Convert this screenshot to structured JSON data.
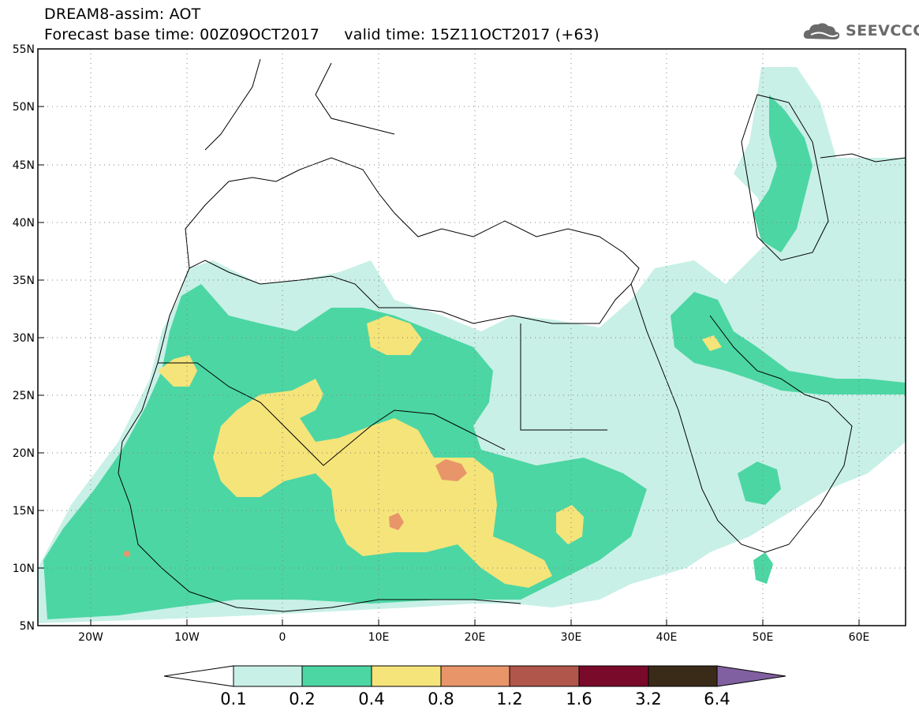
{
  "header": {
    "title_line1": "DREAM8-assim: AOT",
    "title_line2": "Forecast base time: 00Z09OCT2017     valid time: 15Z11OCT2017 (+63)",
    "logo_text": "SEEVCCC"
  },
  "map": {
    "lat_labels": [
      "55N",
      "50N",
      "45N",
      "40N",
      "35N",
      "30N",
      "25N",
      "20N",
      "15N",
      "10N",
      "5N"
    ],
    "lon_labels": [
      "20W",
      "10W",
      "0",
      "10E",
      "20E",
      "30E",
      "40E",
      "50E",
      "60E"
    ]
  },
  "colorbar": {
    "labels": [
      "0.1",
      "0.2",
      "0.4",
      "0.8",
      "1.2",
      "1.6",
      "3.2",
      "6.4"
    ],
    "colors": [
      "#ffffff",
      "#c8f0e6",
      "#4cd6a4",
      "#f5e47a",
      "#e8956a",
      "#b0564a",
      "#7a0a2a",
      "#3a2a18",
      "#8060a0"
    ]
  }
}
